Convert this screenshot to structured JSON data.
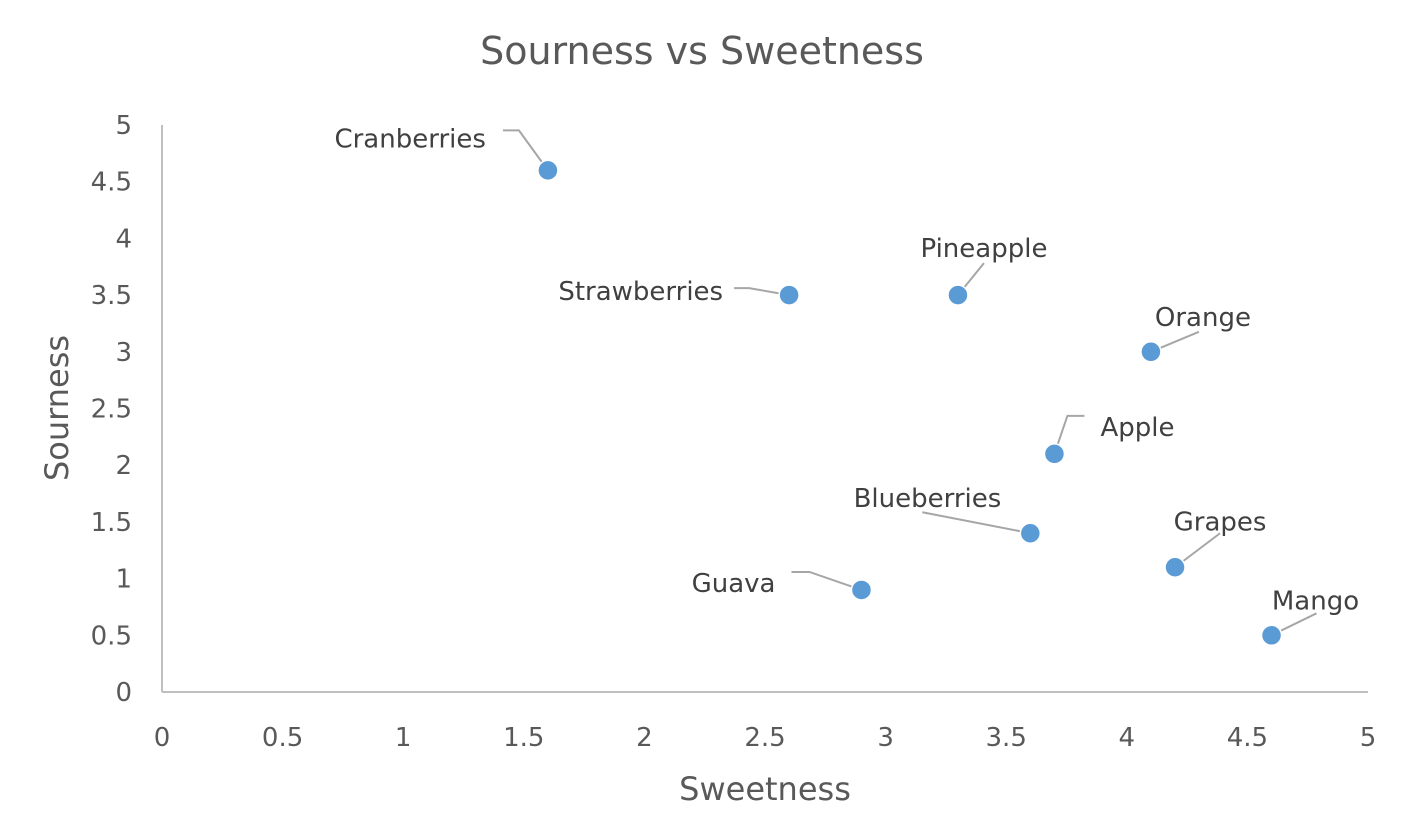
{
  "chart_data": {
    "type": "scatter",
    "title": "Sourness vs Sweetness",
    "xlabel": "Sweetness",
    "ylabel": "Sourness",
    "xlim": [
      0,
      5
    ],
    "ylim": [
      0,
      5
    ],
    "xticks": [
      "0",
      "0.5",
      "1",
      "1.5",
      "2",
      "2.5",
      "3",
      "3.5",
      "4",
      "4.5",
      "5"
    ],
    "yticks": [
      "0",
      "0.5",
      "1",
      "1.5",
      "2",
      "2.5",
      "3",
      "3.5",
      "4",
      "4.5",
      "5"
    ],
    "grid": false,
    "marker_color": "#5b9bd5",
    "points": [
      {
        "label": "Cranberries",
        "x": 1.6,
        "y": 4.6
      },
      {
        "label": "Strawberries",
        "x": 2.6,
        "y": 3.5
      },
      {
        "label": "Pineapple",
        "x": 3.3,
        "y": 3.5
      },
      {
        "label": "Orange",
        "x": 4.1,
        "y": 3.0
      },
      {
        "label": "Apple",
        "x": 3.7,
        "y": 2.1
      },
      {
        "label": "Blueberries",
        "x": 3.6,
        "y": 1.4
      },
      {
        "label": "Guava",
        "x": 2.9,
        "y": 0.9
      },
      {
        "label": "Grapes",
        "x": 4.2,
        "y": 1.1
      },
      {
        "label": "Mango",
        "x": 4.6,
        "y": 0.5
      }
    ]
  }
}
